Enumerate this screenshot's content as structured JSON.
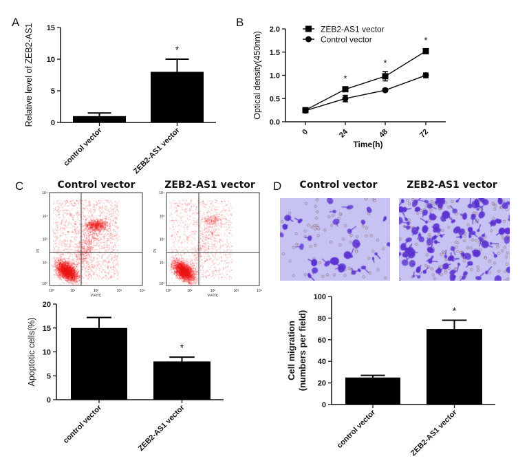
{
  "panels": {
    "A": "A",
    "B": "B",
    "C": "C",
    "D": "D"
  },
  "flow": {
    "titles": [
      "Control vector",
      "ZEB2-AS1 vector"
    ],
    "xlabel": "V-FITC",
    "ylabel": "PI",
    "ticks": [
      "10⁰",
      "10¹",
      "10²",
      "10³",
      "10⁴"
    ]
  },
  "micrograph": {
    "titles": [
      "Control vector",
      "ZEB2-AS1 vector"
    ],
    "colors": {
      "background": "#c6c3f3",
      "cell": "#5b30d0"
    }
  },
  "chart_data": [
    {
      "id": "A",
      "type": "bar",
      "categories": [
        "control vector",
        "ZEB2-AS1 vector"
      ],
      "values": [
        1,
        8
      ],
      "errors": [
        0.5,
        2
      ],
      "significance": [
        "",
        "*"
      ],
      "ylabel": "Relative level of ZEB2-AS1",
      "xlabel": "",
      "ylim": [
        0,
        15
      ],
      "yticks": [
        "0",
        "5",
        "10",
        "15"
      ]
    },
    {
      "id": "B",
      "type": "line",
      "x": [
        0,
        24,
        48,
        72
      ],
      "xticks": [
        "0",
        "24",
        "48",
        "72"
      ],
      "xlabel": "Time(h)",
      "ylabel": "Optical density(450nm)",
      "ylim": [
        0,
        2
      ],
      "yticks": [
        "0.0",
        "0.5",
        "1.0",
        "1.5",
        "2.0"
      ],
      "legend": "top-left",
      "series": [
        {
          "name": "ZEB2-AS1 vector",
          "marker": "square",
          "values": [
            0.25,
            0.7,
            0.98,
            1.52
          ],
          "errors": [
            0.03,
            0.05,
            0.1,
            0.05
          ]
        },
        {
          "name": "Control vector",
          "marker": "circle",
          "values": [
            0.24,
            0.5,
            0.68,
            1.0
          ],
          "errors": [
            0.02,
            0.07,
            0.03,
            0.05
          ]
        }
      ],
      "significance": [
        "",
        "*",
        "*",
        "*"
      ]
    },
    {
      "id": "C",
      "type": "bar",
      "categories": [
        "control vector",
        "ZEB2-AS1 vector"
      ],
      "values": [
        15,
        8
      ],
      "errors": [
        2.2,
        0.9
      ],
      "significance": [
        "",
        "*"
      ],
      "ylabel": "Apoptotic cells(%)",
      "xlabel": "",
      "ylim": [
        0,
        20
      ],
      "yticks": [
        "0",
        "5",
        "10",
        "15",
        "20"
      ]
    },
    {
      "id": "D",
      "type": "bar",
      "categories": [
        "control vector",
        "ZEB2-AS1 vector"
      ],
      "values": [
        25,
        70
      ],
      "errors": [
        2,
        8
      ],
      "significance": [
        "",
        "*"
      ],
      "ylabel": [
        "Cell migration",
        "(numbers per field)"
      ],
      "xlabel": "",
      "ylim": [
        0,
        100
      ],
      "yticks": [
        "0",
        "20",
        "40",
        "60",
        "80",
        "100"
      ]
    }
  ]
}
